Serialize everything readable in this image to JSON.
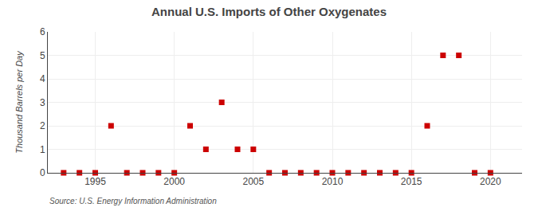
{
  "chart_data": {
    "type": "scatter",
    "title": "Annual U.S. Imports of Other Oxygenates",
    "ylabel": "Thousand Barrels per Day",
    "annotations": [
      "Source: U.S. Energy Information Administration"
    ],
    "x": [
      1993,
      1994,
      1995,
      1996,
      1997,
      1998,
      1999,
      2000,
      2001,
      2002,
      2003,
      2004,
      2005,
      2006,
      2007,
      2008,
      2009,
      2010,
      2011,
      2012,
      2013,
      2014,
      2015,
      2016,
      2017,
      2018,
      2019,
      2020
    ],
    "values": [
      0,
      0,
      0,
      2,
      0,
      0,
      0,
      0,
      2,
      1,
      3,
      1,
      1,
      0,
      0,
      0,
      0,
      0,
      0,
      0,
      0,
      0,
      0,
      2,
      5,
      5,
      0,
      0
    ],
    "color": "#cc0000",
    "marker": "square",
    "xlim": [
      1992,
      2022
    ],
    "xticks": [
      1995,
      2000,
      2005,
      2010,
      2015,
      2020
    ],
    "ylim": [
      0,
      6
    ],
    "yticks": [
      0,
      1,
      2,
      3,
      4,
      5,
      6
    ],
    "grid": true
  }
}
